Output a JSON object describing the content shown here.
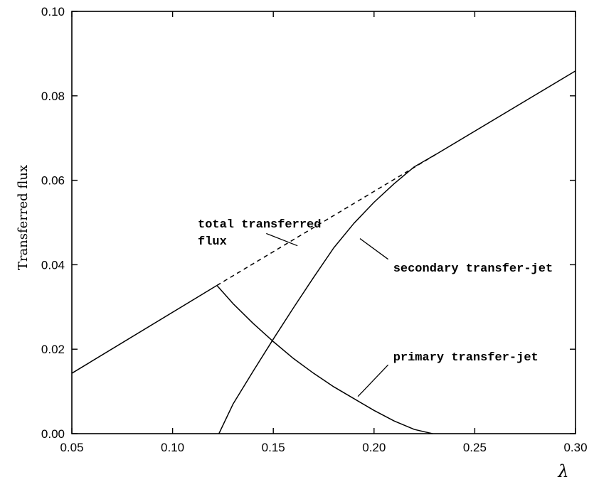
{
  "chart_data": {
    "type": "line",
    "xlabel": "λ",
    "ylabel": "Transferred flux",
    "xlim": [
      0.05,
      0.3
    ],
    "ylim": [
      0.0,
      0.1
    ],
    "x_ticks": [
      "0.05",
      "0.10",
      "0.15",
      "0.20",
      "0.25",
      "0.30"
    ],
    "y_ticks": [
      "0.00",
      "0.02",
      "0.04",
      "0.06",
      "0.08",
      "0.10"
    ],
    "grid": false,
    "series": [
      {
        "key": "total_solid_left",
        "style": "solid",
        "x": [
          0.05,
          0.122
        ],
        "y": [
          0.0143,
          0.0351
        ]
      },
      {
        "key": "total_dashed",
        "style": "dashed",
        "x": [
          0.122,
          0.232
        ],
        "y": [
          0.0351,
          0.0665
        ]
      },
      {
        "key": "total_solid_right",
        "style": "solid",
        "x": [
          0.232,
          0.3
        ],
        "y": [
          0.0665,
          0.0859
        ]
      },
      {
        "key": "primary",
        "style": "solid",
        "x": [
          0.122,
          0.13,
          0.14,
          0.15,
          0.16,
          0.17,
          0.18,
          0.19,
          0.2,
          0.21,
          0.22,
          0.229
        ],
        "y": [
          0.0351,
          0.0308,
          0.0261,
          0.0218,
          0.0178,
          0.0143,
          0.0111,
          0.0083,
          0.0055,
          0.003,
          0.001,
          0.0
        ]
      },
      {
        "key": "secondary",
        "style": "solid",
        "x": [
          0.123,
          0.13,
          0.14,
          0.15,
          0.16,
          0.17,
          0.18,
          0.19,
          0.2,
          0.21,
          0.22,
          0.232
        ],
        "y": [
          0.0,
          0.007,
          0.0148,
          0.0224,
          0.0298,
          0.037,
          0.044,
          0.0498,
          0.0548,
          0.0592,
          0.0632,
          0.0665
        ]
      }
    ],
    "annotations": [
      {
        "key": "total",
        "lines": [
          "total transferred",
          "flux"
        ],
        "label_at": [
          0.1125,
          0.0488
        ],
        "pointer": [
          [
            0.1465,
            0.0474
          ],
          [
            0.162,
            0.0445
          ]
        ]
      },
      {
        "key": "secondary",
        "lines": [
          "secondary transfer-jet"
        ],
        "label_at": [
          0.2095,
          0.0384
        ],
        "pointer": [
          [
            0.207,
            0.0413
          ],
          [
            0.193,
            0.0462
          ]
        ]
      },
      {
        "key": "primary",
        "lines": [
          "primary transfer-jet"
        ],
        "label_at": [
          0.2095,
          0.0173
        ],
        "pointer": [
          [
            0.207,
            0.0163
          ],
          [
            0.192,
            0.0088
          ]
        ]
      }
    ]
  }
}
